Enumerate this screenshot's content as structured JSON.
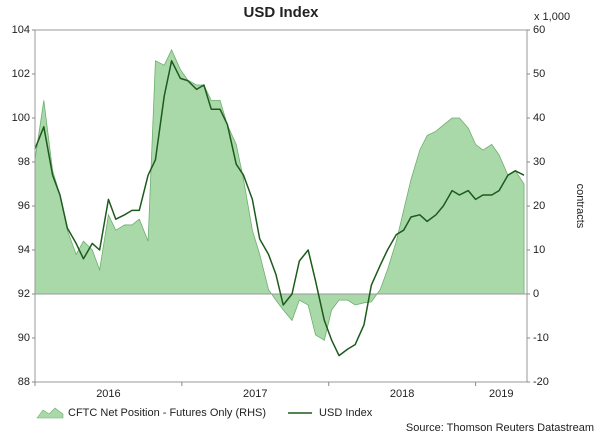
{
  "chart_data": {
    "type": "line",
    "title": "USD Index",
    "y2_unit": "x 1,000",
    "y2_label": "contracts",
    "source": "Source: Thomson Reuters Datastream",
    "x": [
      2016.0,
      2016.06,
      2016.12,
      2016.17,
      2016.22,
      2016.28,
      2016.33,
      2016.39,
      2016.44,
      2016.5,
      2016.55,
      2016.61,
      2016.66,
      2016.71,
      2016.77,
      2016.82,
      2016.88,
      2016.93,
      2016.99,
      2017.04,
      2017.1,
      2017.15,
      2017.2,
      2017.26,
      2017.31,
      2017.37,
      2017.42,
      2017.48,
      2017.53,
      2017.59,
      2017.64,
      2017.69,
      2017.75,
      2017.8,
      2017.86,
      2017.91,
      2017.97,
      2018.02,
      2018.07,
      2018.13,
      2018.18,
      2018.24,
      2018.29,
      2018.35,
      2018.4,
      2018.46,
      2018.51,
      2018.56,
      2018.62,
      2018.67,
      2018.73,
      2018.78,
      2018.84,
      2018.89,
      2018.95,
      2019.0,
      2019.05,
      2019.11,
      2019.16,
      2019.22,
      2019.27,
      2019.33
    ],
    "xlim": [
      2016,
      2019.35
    ],
    "xticks": [
      2016,
      2017,
      2018,
      2019
    ],
    "ylim": [
      88,
      104
    ],
    "yticks": [
      88,
      90,
      92,
      94,
      96,
      98,
      100,
      102,
      104
    ],
    "y2lim": [
      -20,
      60
    ],
    "y2ticks": [
      -20,
      -10,
      0,
      10,
      20,
      30,
      40,
      50,
      60
    ],
    "series": [
      {
        "name": "CFTC Net Position - Futures Only (RHS)",
        "type": "area",
        "axis": "y2",
        "color": "#a9d9a9",
        "edge_color": "#6fae6f",
        "values": [
          30.5,
          44,
          28,
          22.5,
          14.5,
          9,
          12,
          10,
          5.5,
          18,
          14.5,
          15.7,
          15.7,
          17,
          12,
          53,
          52,
          55.5,
          51,
          48.6,
          47.5,
          47.5,
          44,
          44,
          38.4,
          34,
          26,
          14.5,
          9,
          1,
          -1.4,
          -3.6,
          -6,
          -1.4,
          -2.5,
          -9.3,
          -10.5,
          -3.6,
          -1.4,
          -1.4,
          -2.5,
          -2,
          -1.8,
          1,
          5.5,
          12,
          19,
          26,
          32.7,
          36,
          37,
          38.4,
          40,
          40,
          37.7,
          34,
          32.7,
          34,
          31.6,
          27,
          28,
          25
        ]
      },
      {
        "name": "USD Index",
        "type": "line",
        "axis": "y",
        "color": "#1d5a1d",
        "values": [
          98.6,
          99.6,
          97.4,
          96.5,
          95.0,
          94.3,
          93.6,
          94.3,
          94.0,
          96.3,
          95.4,
          95.6,
          95.8,
          95.8,
          97.4,
          98.1,
          101.0,
          102.6,
          101.8,
          101.7,
          101.3,
          101.5,
          100.4,
          100.4,
          99.7,
          97.9,
          97.4,
          96.3,
          94.5,
          93.8,
          92.9,
          91.5,
          92.0,
          93.5,
          94.0,
          92.6,
          90.8,
          89.9,
          89.2,
          89.5,
          89.7,
          90.6,
          92.4,
          93.3,
          94.0,
          94.7,
          94.9,
          95.5,
          95.6,
          95.3,
          95.6,
          96.0,
          96.7,
          96.5,
          96.7,
          96.3,
          96.5,
          96.5,
          96.7,
          97.4,
          97.6,
          97.4
        ]
      }
    ]
  }
}
